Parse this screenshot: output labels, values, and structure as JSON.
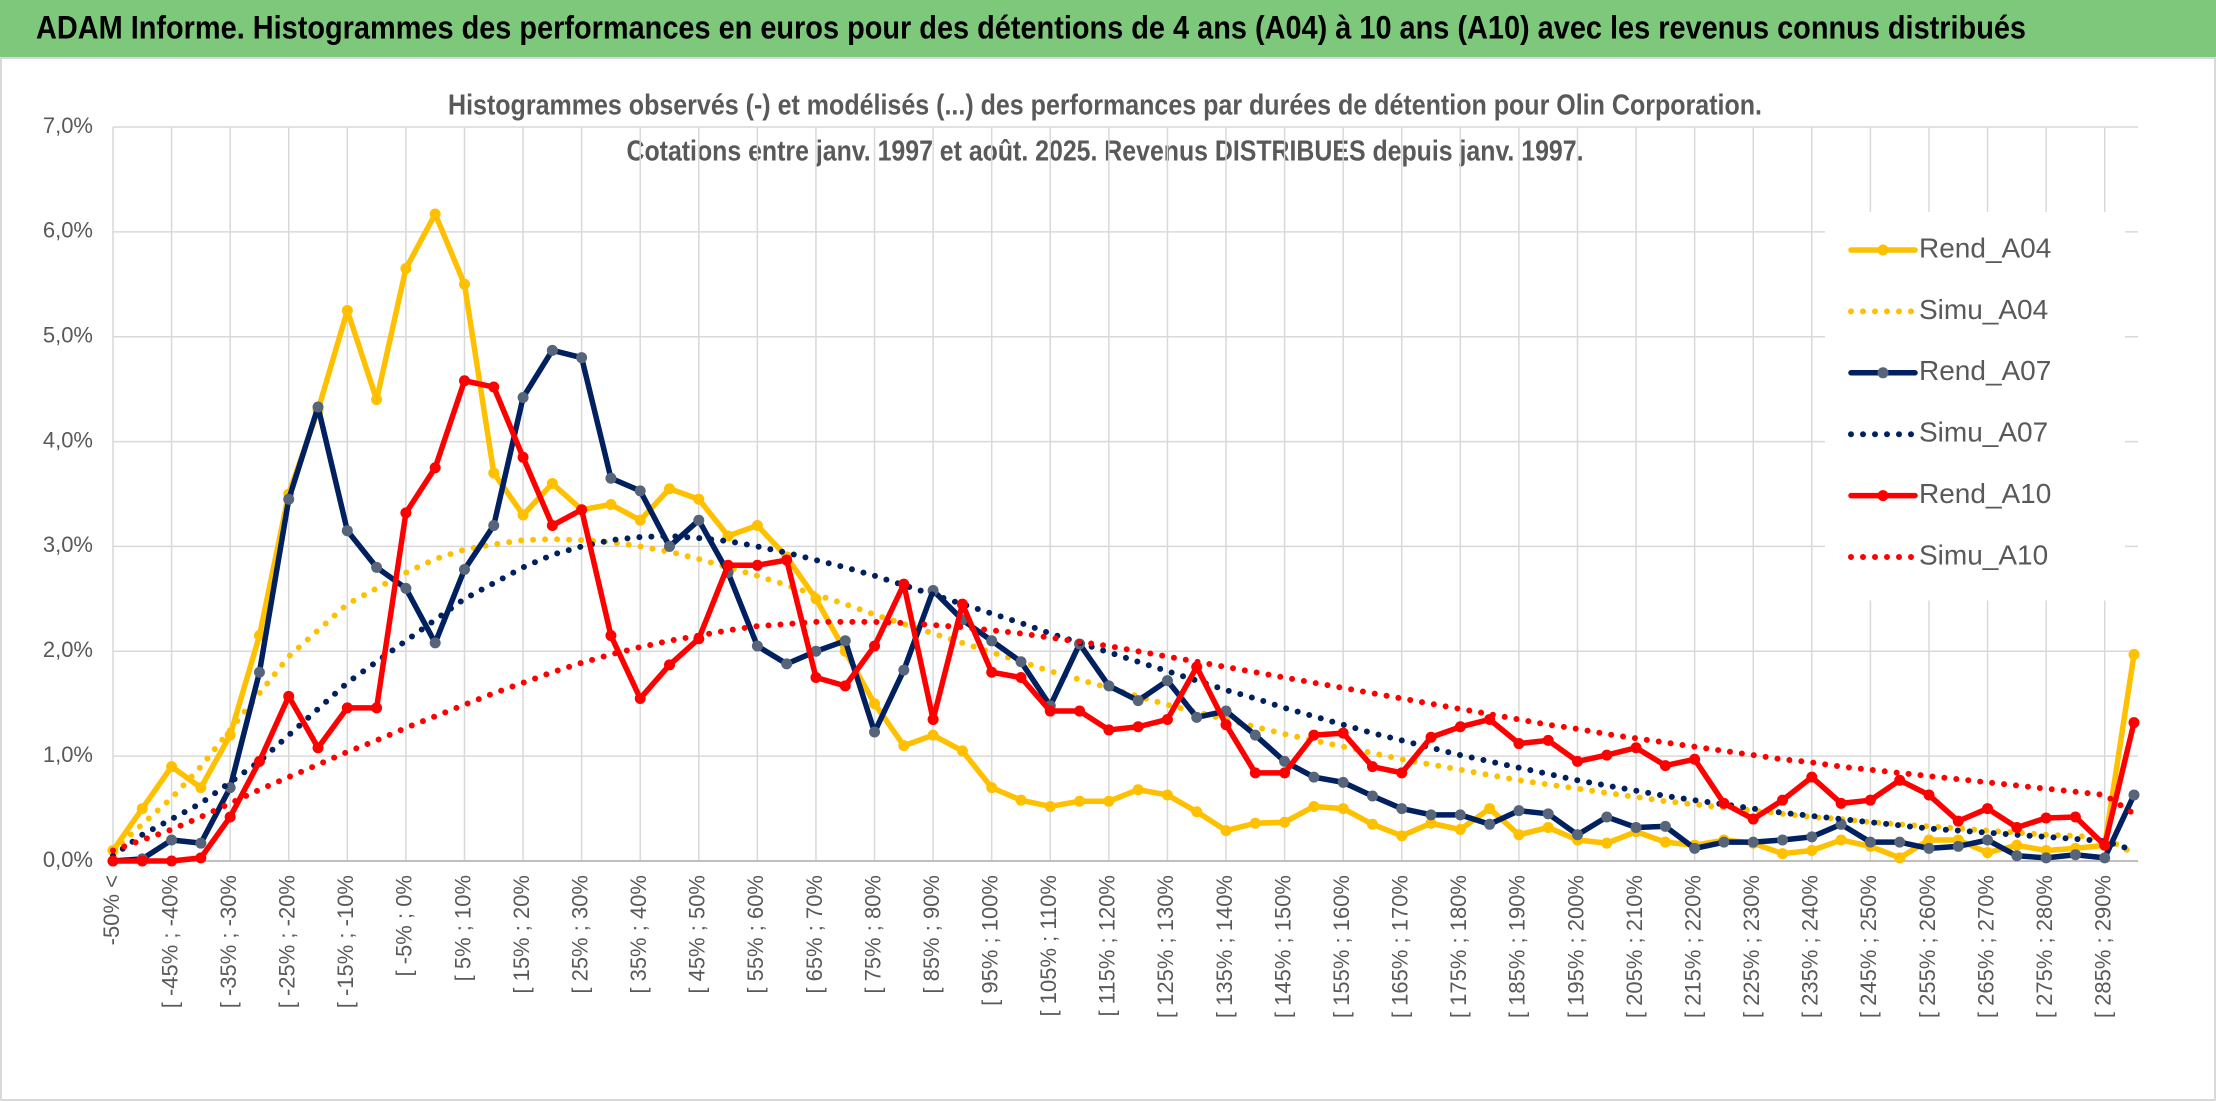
{
  "header": {
    "title": "ADAM Informe. Histogrammes des performances en euros pour des détentions de 4 ans (A04) à 10 ans (A10) avec les revenus connus distribués"
  },
  "chart_data": {
    "type": "line",
    "title": "Histogrammes observés (-) et modélisés (...) des performances par durées de détention pour Olin Corporation.",
    "subtitle": "Cotations entre janv. 1997 et août. 2025. Revenus DISTRIBUES depuis janv. 1997.",
    "categories": [
      "-50% <",
      null,
      "[ -45% ; -40%",
      null,
      "[ -35% ; -30%",
      null,
      "[ -25% ; -20%",
      null,
      "[ -15% ; -10%",
      null,
      "[ -5% ; 0%",
      null,
      "[ 5% ; 10%",
      null,
      "[ 15% ; 20%",
      null,
      "[ 25% ; 30%",
      null,
      "[ 35% ; 40%",
      null,
      "[ 45% ; 50%",
      null,
      "[ 55% ; 60%",
      null,
      "[ 65% ; 70%",
      null,
      "[ 75% ; 80%",
      null,
      "[ 85% ; 90%",
      null,
      "[ 95% ; 100%",
      null,
      "[ 105% ; 110%",
      null,
      "[ 115% ; 120%",
      null,
      "[ 125% ; 130%",
      null,
      "[ 135% ; 140%",
      null,
      "[ 145% ; 150%",
      null,
      "[ 155% ; 160%",
      null,
      "[ 165% ; 170%",
      null,
      "[ 175% ; 180%",
      null,
      "[ 185% ; 190%",
      null,
      "[ 195% ; 200%",
      null,
      "[ 205% ; 210%",
      null,
      "[ 215% ; 220%",
      null,
      "[ 225% ; 230%",
      null,
      "[ 235% ; 240%",
      null,
      "[ 245% ; 250%",
      null,
      "[ 255% ; 260%",
      null,
      "[ 265% ; 270%",
      null,
      "[ 275% ; 280%",
      null,
      "[ 285% ; 290%",
      null
    ],
    "ylim": [
      0,
      7
    ],
    "yticks": [
      {
        "value": 0,
        "label": "0,0%"
      },
      {
        "value": 1,
        "label": "1,0%"
      },
      {
        "value": 2,
        "label": "2,0%"
      },
      {
        "value": 3,
        "label": "3,0%"
      },
      {
        "value": 4,
        "label": "4,0%"
      },
      {
        "value": 5,
        "label": "5,0%"
      },
      {
        "value": 6,
        "label": "6,0%"
      },
      {
        "value": 7,
        "label": "7,0%"
      }
    ],
    "grid": true,
    "legend": "right",
    "series": [
      {
        "name": "Rend_A04",
        "color": "#ffc000",
        "style": "solid",
        "markers": true,
        "marker_color": "#ffc000",
        "values": [
          0.1,
          0.5,
          0.9,
          0.7,
          1.2,
          2.15,
          3.5,
          4.3,
          5.25,
          4.4,
          5.65,
          6.17,
          5.5,
          3.7,
          3.3,
          3.6,
          3.35,
          3.4,
          3.25,
          3.55,
          3.45,
          3.1,
          3.2,
          2.9,
          2.5,
          2.0,
          1.5,
          1.1,
          1.2,
          1.05,
          0.7,
          0.58,
          0.52,
          0.57,
          0.57,
          0.68,
          0.63,
          0.47,
          0.29,
          0.36,
          0.37,
          0.52,
          0.5,
          0.35,
          0.24,
          0.36,
          0.3,
          0.5,
          0.25,
          0.32,
          0.2,
          0.17,
          0.28,
          0.18,
          0.15,
          0.2,
          0.17,
          0.07,
          0.1,
          0.2,
          0.14,
          0.03,
          0.2,
          0.2,
          0.08,
          0.15,
          0.1,
          0.12,
          0.15,
          1.97
        ]
      },
      {
        "name": "Simu_A04",
        "color": "#ffc000",
        "style": "dotted",
        "markers": false,
        "values": [
          0.1,
          0.35,
          0.6,
          0.9,
          1.25,
          1.6,
          1.95,
          2.2,
          2.45,
          2.6,
          2.75,
          2.88,
          2.97,
          3.02,
          3.06,
          3.07,
          3.06,
          3.04,
          3.0,
          2.95,
          2.88,
          2.8,
          2.72,
          2.63,
          2.54,
          2.45,
          2.35,
          2.26,
          2.17,
          2.08,
          1.99,
          1.9,
          1.81,
          1.73,
          1.65,
          1.57,
          1.49,
          1.42,
          1.35,
          1.28,
          1.21,
          1.15,
          1.09,
          1.03,
          0.97,
          0.92,
          0.87,
          0.82,
          0.77,
          0.73,
          0.69,
          0.65,
          0.61,
          0.57,
          0.54,
          0.51,
          0.48,
          0.45,
          0.42,
          0.4,
          0.37,
          0.35,
          0.33,
          0.31,
          0.29,
          0.27,
          0.25,
          0.24,
          0.22,
          0.07
        ]
      },
      {
        "name": "Rend_A07",
        "color": "#002060",
        "style": "solid",
        "markers": true,
        "marker_color": "#56657a",
        "values": [
          0.0,
          0.02,
          0.2,
          0.17,
          0.7,
          1.8,
          3.45,
          4.33,
          3.15,
          2.8,
          2.6,
          2.08,
          2.78,
          3.2,
          4.42,
          4.87,
          4.8,
          3.65,
          3.53,
          3.0,
          3.25,
          2.75,
          2.05,
          1.88,
          2.0,
          2.1,
          1.23,
          1.82,
          2.58,
          2.3,
          2.1,
          1.9,
          1.48,
          2.07,
          1.67,
          1.53,
          1.72,
          1.37,
          1.43,
          1.2,
          0.95,
          0.8,
          0.75,
          0.62,
          0.5,
          0.44,
          0.44,
          0.35,
          0.48,
          0.45,
          0.25,
          0.42,
          0.32,
          0.33,
          0.12,
          0.18,
          0.18,
          0.2,
          0.23,
          0.35,
          0.18,
          0.18,
          0.12,
          0.14,
          0.2,
          0.05,
          0.03,
          0.06,
          0.03,
          0.63
        ]
      },
      {
        "name": "Simu_A07",
        "color": "#002060",
        "style": "dotted",
        "markers": false,
        "values": [
          0.05,
          0.25,
          0.4,
          0.55,
          0.75,
          0.95,
          1.2,
          1.45,
          1.7,
          1.9,
          2.1,
          2.3,
          2.5,
          2.65,
          2.8,
          2.92,
          3.0,
          3.06,
          3.09,
          3.1,
          3.08,
          3.05,
          3.0,
          2.94,
          2.87,
          2.8,
          2.72,
          2.63,
          2.54,
          2.45,
          2.36,
          2.27,
          2.17,
          2.08,
          1.99,
          1.9,
          1.81,
          1.72,
          1.63,
          1.55,
          1.46,
          1.38,
          1.3,
          1.22,
          1.15,
          1.08,
          1.01,
          0.95,
          0.89,
          0.83,
          0.77,
          0.72,
          0.67,
          0.62,
          0.58,
          0.54,
          0.5,
          0.46,
          0.43,
          0.4,
          0.37,
          0.34,
          0.31,
          0.29,
          0.27,
          0.25,
          0.23,
          0.21,
          0.19,
          0.1
        ]
      },
      {
        "name": "Rend_A10",
        "color": "#ff0000",
        "style": "solid",
        "markers": true,
        "marker_color": "#ff0000",
        "values": [
          0.0,
          0.0,
          0.0,
          0.03,
          0.42,
          0.95,
          1.57,
          1.08,
          1.46,
          1.46,
          3.32,
          3.75,
          4.58,
          4.52,
          3.85,
          3.2,
          3.35,
          2.15,
          1.55,
          1.87,
          2.12,
          2.82,
          2.82,
          2.87,
          1.75,
          1.67,
          2.05,
          2.64,
          1.35,
          2.45,
          1.8,
          1.75,
          1.43,
          1.43,
          1.25,
          1.28,
          1.35,
          1.85,
          1.3,
          0.84,
          0.84,
          1.2,
          1.22,
          0.9,
          0.84,
          1.18,
          1.28,
          1.35,
          1.12,
          1.15,
          0.95,
          1.01,
          1.08,
          0.91,
          0.97,
          0.55,
          0.4,
          0.58,
          0.8,
          0.55,
          0.58,
          0.77,
          0.63,
          0.38,
          0.5,
          0.32,
          0.41,
          0.42,
          0.15,
          1.32
        ]
      },
      {
        "name": "Simu_A10",
        "color": "#ff0000",
        "style": "dotted",
        "markers": false,
        "values": [
          0.1,
          0.2,
          0.3,
          0.42,
          0.55,
          0.68,
          0.8,
          0.92,
          1.04,
          1.15,
          1.27,
          1.38,
          1.49,
          1.6,
          1.7,
          1.8,
          1.89,
          1.97,
          2.04,
          2.1,
          2.15,
          2.2,
          2.24,
          2.26,
          2.28,
          2.28,
          2.28,
          2.27,
          2.25,
          2.23,
          2.2,
          2.17,
          2.13,
          2.09,
          2.05,
          2.0,
          1.95,
          1.9,
          1.85,
          1.8,
          1.75,
          1.7,
          1.65,
          1.6,
          1.55,
          1.5,
          1.45,
          1.4,
          1.35,
          1.3,
          1.26,
          1.21,
          1.17,
          1.13,
          1.09,
          1.05,
          1.01,
          0.97,
          0.94,
          0.9,
          0.87,
          0.84,
          0.81,
          0.78,
          0.75,
          0.72,
          0.69,
          0.66,
          0.63,
          0.45
        ]
      }
    ]
  }
}
